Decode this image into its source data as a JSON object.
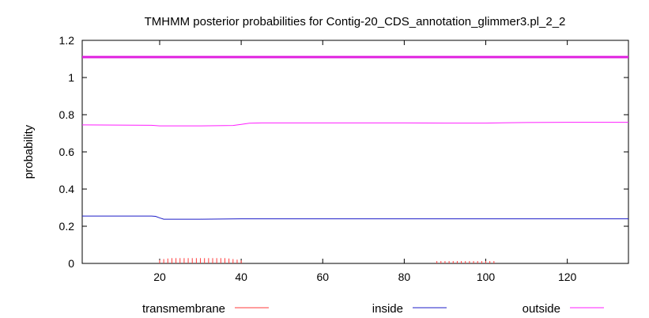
{
  "chart_data": {
    "type": "line",
    "title": "TMHMM posterior probabilities for Contig-20_CDS_annotation_glimmer3.pl_2_2",
    "xlabel": "",
    "ylabel": "probability",
    "xlim": [
      1,
      135
    ],
    "ylim": [
      0,
      1.2
    ],
    "x_ticks": [
      20,
      40,
      60,
      80,
      100,
      120
    ],
    "x_tick_labels": [
      "20",
      "40",
      "60",
      "80",
      "100",
      "120"
    ],
    "y_ticks": [
      0,
      0.2,
      0.4,
      0.6,
      0.8,
      1,
      1.2
    ],
    "y_tick_labels": [
      "0",
      "0.2",
      "0.4",
      "0.6",
      "0.8",
      "1",
      "1.2"
    ],
    "grid": false,
    "legend_position": "bottom",
    "series": [
      {
        "name": "transmembrane",
        "color": "#ff3b3b",
        "style": "impulses",
        "x": [
          20,
          21,
          22,
          23,
          24,
          25,
          26,
          27,
          28,
          29,
          30,
          31,
          32,
          33,
          34,
          35,
          36,
          37,
          38,
          39,
          40,
          88,
          89,
          90,
          91,
          92,
          93,
          94,
          95,
          96,
          97,
          98,
          99,
          100,
          101,
          102
        ],
        "values": [
          0.01,
          0.015,
          0.018,
          0.02,
          0.02,
          0.02,
          0.02,
          0.02,
          0.02,
          0.02,
          0.02,
          0.02,
          0.02,
          0.02,
          0.02,
          0.02,
          0.02,
          0.018,
          0.015,
          0.012,
          0.008,
          0.004,
          0.004,
          0.004,
          0.004,
          0.004,
          0.004,
          0.004,
          0.004,
          0.004,
          0.004,
          0.004,
          0.004,
          0.004,
          0.004,
          0.004
        ]
      },
      {
        "name": "inside",
        "color": "#1e1ec8",
        "style": "line",
        "x": [
          1,
          18,
          19,
          20,
          21,
          30,
          40,
          50,
          60,
          80,
          100,
          120,
          135
        ],
        "values": [
          0.255,
          0.255,
          0.253,
          0.245,
          0.238,
          0.238,
          0.24,
          0.24,
          0.24,
          0.24,
          0.24,
          0.24,
          0.24
        ]
      },
      {
        "name": "outside",
        "color": "#ff1eff",
        "style": "line",
        "x": [
          1,
          18,
          20,
          30,
          38,
          40,
          42,
          45,
          60,
          80,
          90,
          100,
          110,
          120,
          135
        ],
        "values": [
          0.745,
          0.743,
          0.74,
          0.74,
          0.742,
          0.748,
          0.754,
          0.756,
          0.756,
          0.756,
          0.755,
          0.755,
          0.758,
          0.759,
          0.759
        ]
      }
    ],
    "reference_line": {
      "y": 1.11,
      "color": "#e020e0"
    }
  }
}
